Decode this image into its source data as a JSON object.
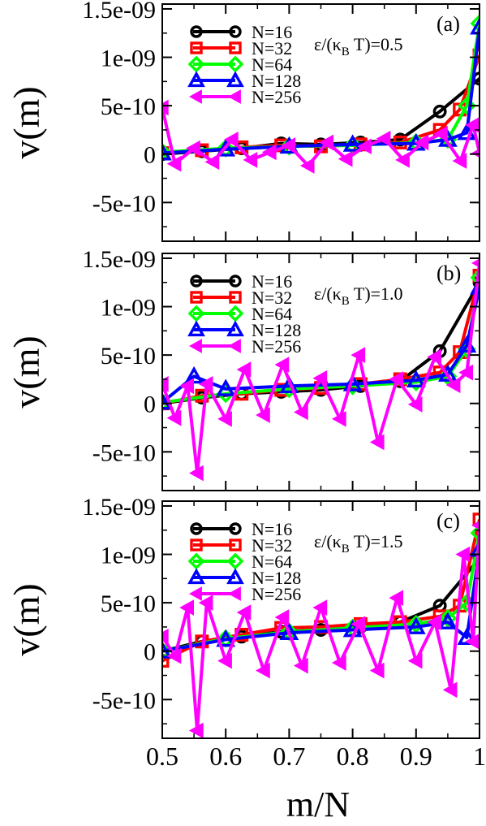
{
  "figure": {
    "xlabel": "m/N",
    "ylabel": "v(m)",
    "x_ticks": [
      "0.5",
      "0.6",
      "0.7",
      "0.8",
      "0.9",
      "1"
    ],
    "y_ticks": [
      "1.5e-09",
      "1e-09",
      "5e-10",
      "0",
      "-5e-10"
    ]
  },
  "chart_data": [
    {
      "type": "line",
      "panel_label": "(a)",
      "annotation": "ε/(κ_B T)=0.5",
      "xlim": [
        0.5,
        1.0
      ],
      "ylim": [
        -9e-10,
        1.55e-09
      ],
      "x_ticks": [
        0.5,
        0.6,
        0.7,
        0.8,
        0.9,
        1.0
      ],
      "y_ticks": [
        -5e-10,
        0,
        5e-10,
        1e-09,
        1.5e-09
      ],
      "series": [
        {
          "name": "N=16",
          "color": "#000000",
          "marker": "circle",
          "x": [
            0.5,
            0.5625,
            0.625,
            0.6875,
            0.75,
            0.8125,
            0.875,
            0.9375,
            1.0
          ],
          "y": [
            0,
            3e-11,
            6e-11,
            1.1e-10,
            1e-10,
            1.2e-10,
            1.5e-10,
            4.4e-10,
            7.8e-10
          ]
        },
        {
          "name": "N=32",
          "color": "#ff0000",
          "marker": "square",
          "x": [
            0.5,
            0.5625,
            0.625,
            0.6875,
            0.75,
            0.8125,
            0.875,
            0.9375,
            0.96875,
            1.0
          ],
          "y": [
            1e-11,
            4e-11,
            7e-11,
            9e-11,
            8e-11,
            1e-10,
            1.2e-10,
            2.5e-10,
            4.6e-10,
            1.02e-09
          ]
        },
        {
          "name": "N=64",
          "color": "#00ff00",
          "marker": "diamond",
          "x": [
            0.5,
            0.6,
            0.7,
            0.8,
            0.9,
            0.95,
            0.98,
            1.0
          ],
          "y": [
            2e-11,
            6e-11,
            8e-11,
            9e-11,
            1.2e-10,
            1.5e-10,
            5e-10,
            1.35e-09
          ]
        },
        {
          "name": "N=128",
          "color": "#0000ff",
          "marker": "triangle-up",
          "x": [
            0.5,
            0.6,
            0.7,
            0.8,
            0.9,
            0.95,
            0.98,
            1.0
          ],
          "y": [
            1e-11,
            5e-11,
            8e-11,
            1e-10,
            1.1e-10,
            1.5e-10,
            2.2e-10,
            1.31e-09
          ]
        },
        {
          "name": "N=256",
          "color": "#ff00ff",
          "marker": "triangle-left",
          "x": [
            0.5,
            0.52,
            0.55,
            0.58,
            0.61,
            0.64,
            0.67,
            0.7,
            0.73,
            0.76,
            0.79,
            0.82,
            0.85,
            0.88,
            0.91,
            0.94,
            0.97,
            0.99,
            1.0
          ],
          "y": [
            4.8e-10,
            -1e-10,
            6e-11,
            -8e-11,
            1.5e-10,
            -6e-11,
            2e-11,
            9e-11,
            -1.2e-10,
            1.2e-10,
            -5e-11,
            8e-11,
            1.6e-10,
            -6e-11,
            1.2e-10,
            2.1e-10,
            -7e-11,
            3e-10,
            1e-11
          ]
        }
      ]
    },
    {
      "type": "line",
      "panel_label": "(b)",
      "annotation": "ε/(κ_B T)=1.0",
      "xlim": [
        0.5,
        1.0
      ],
      "ylim": [
        -9e-10,
        1.55e-09
      ],
      "x_ticks": [
        0.5,
        0.6,
        0.7,
        0.8,
        0.9,
        1.0
      ],
      "y_ticks": [
        -5e-10,
        0,
        5e-10,
        1e-09,
        1.5e-09
      ],
      "series": [
        {
          "name": "N=16",
          "color": "#000000",
          "marker": "circle",
          "x": [
            0.5,
            0.5625,
            0.625,
            0.6875,
            0.75,
            0.8125,
            0.875,
            0.9375,
            1.0
          ],
          "y": [
            0,
            6e-11,
            1e-10,
            1.2e-10,
            1.4e-10,
            1.8e-10,
            2.3e-10,
            5.4e-10,
            1.25e-09
          ]
        },
        {
          "name": "N=32",
          "color": "#ff0000",
          "marker": "square",
          "x": [
            0.5,
            0.5625,
            0.625,
            0.6875,
            0.75,
            0.8125,
            0.875,
            0.9375,
            0.96875,
            1.0
          ],
          "y": [
            0,
            8e-11,
            1e-10,
            1.4e-10,
            1.6e-10,
            2e-10,
            2.5e-10,
            3.2e-10,
            5.3e-10,
            1.32e-09
          ]
        },
        {
          "name": "N=64",
          "color": "#00ff00",
          "marker": "diamond",
          "x": [
            0.5,
            0.6,
            0.7,
            0.8,
            0.9,
            0.95,
            0.98,
            1.0
          ],
          "y": [
            1e-11,
            1e-10,
            1.5e-10,
            1.8e-10,
            2.2e-10,
            2.8e-10,
            5.6e-10,
            1.3e-09
          ]
        },
        {
          "name": "N=128",
          "color": "#0000ff",
          "marker": "triangle-up",
          "x": [
            0.5,
            0.55,
            0.6,
            0.7,
            0.8,
            0.9,
            0.95,
            0.98,
            1.0
          ],
          "y": [
            1e-11,
            2.8e-10,
            1.5e-10,
            1.8e-10,
            2e-10,
            2.4e-10,
            3e-10,
            6e-10,
            1.2e-09
          ]
        },
        {
          "name": "N=256",
          "color": "#ff00ff",
          "marker": "triangle-left",
          "x": [
            0.5,
            0.52,
            0.54,
            0.555,
            0.57,
            0.6,
            0.63,
            0.66,
            0.69,
            0.72,
            0.75,
            0.78,
            0.81,
            0.84,
            0.87,
            0.9,
            0.93,
            0.96,
            0.98,
            1.0
          ],
          "y": [
            2e-10,
            -1.5e-10,
            1.8e-10,
            -7.2e-10,
            2e-10,
            -1.6e-10,
            3.5e-10,
            -1.2e-10,
            4e-10,
            -9e-11,
            2.6e-10,
            -1.6e-10,
            5e-10,
            -4e-10,
            2.5e-10,
            -1e-11,
            4.8e-10,
            1.9e-10,
            3.2e-10,
            1.45e-09
          ]
        }
      ]
    },
    {
      "type": "line",
      "panel_label": "(c)",
      "annotation": "ε/(κ_B T)=1.5",
      "xlim": [
        0.5,
        1.0
      ],
      "ylim": [
        -9e-10,
        1.55e-09
      ],
      "x_ticks": [
        0.5,
        0.6,
        0.7,
        0.8,
        0.9,
        1.0
      ],
      "y_ticks": [
        -5e-10,
        0,
        5e-10,
        1e-09,
        1.5e-09
      ],
      "series": [
        {
          "name": "N=16",
          "color": "#000000",
          "marker": "circle",
          "x": [
            0.5,
            0.5625,
            0.625,
            0.6875,
            0.75,
            0.8125,
            0.875,
            0.9375,
            1.0
          ],
          "y": [
            0,
            1e-10,
            1.5e-10,
            2e-10,
            2.2e-10,
            2.5e-10,
            3e-10,
            4.7e-10,
            9.6e-10
          ]
        },
        {
          "name": "N=32",
          "color": "#ff0000",
          "marker": "square",
          "x": [
            0.5,
            0.5625,
            0.625,
            0.6875,
            0.75,
            0.8125,
            0.875,
            0.9375,
            0.96875,
            1.0
          ],
          "y": [
            -1e-10,
            1e-10,
            1.7e-10,
            2.4e-10,
            2.5e-10,
            2.8e-10,
            3e-10,
            3.6e-10,
            4.7e-10,
            1.36e-09
          ]
        },
        {
          "name": "N=64",
          "color": "#00ff00",
          "marker": "diamond",
          "x": [
            0.5,
            0.6,
            0.7,
            0.8,
            0.9,
            0.95,
            0.98,
            1.0
          ],
          "y": [
            0,
            1.3e-10,
            2e-10,
            2.4e-10,
            2.8e-10,
            3.4e-10,
            5e-10,
            1.22e-09
          ]
        },
        {
          "name": "N=128",
          "color": "#0000ff",
          "marker": "triangle-up",
          "x": [
            0.5,
            0.6,
            0.7,
            0.8,
            0.9,
            0.95,
            0.98,
            1.0
          ],
          "y": [
            0,
            1.2e-10,
            1.9e-10,
            2.2e-10,
            2.5e-10,
            3e-10,
            1.4e-10,
            1.05e-09
          ]
        },
        {
          "name": "N=256",
          "color": "#ff00ff",
          "marker": "triangle-left",
          "x": [
            0.5,
            0.52,
            0.54,
            0.555,
            0.57,
            0.6,
            0.63,
            0.66,
            0.69,
            0.72,
            0.75,
            0.78,
            0.81,
            0.84,
            0.87,
            0.9,
            0.93,
            0.955,
            0.975,
            0.99,
            1.0
          ],
          "y": [
            1.5e-10,
            -5e-11,
            4.5e-10,
            -8.2e-10,
            5e-10,
            -1e-10,
            4e-10,
            -2e-10,
            3.5e-10,
            -1.5e-10,
            4.5e-10,
            -1.2e-10,
            2.8e-10,
            -2e-10,
            5.5e-10,
            -1e-10,
            3e-10,
            -4e-10,
            1e-09,
            1e-10,
            1.3e-09
          ]
        }
      ]
    }
  ]
}
